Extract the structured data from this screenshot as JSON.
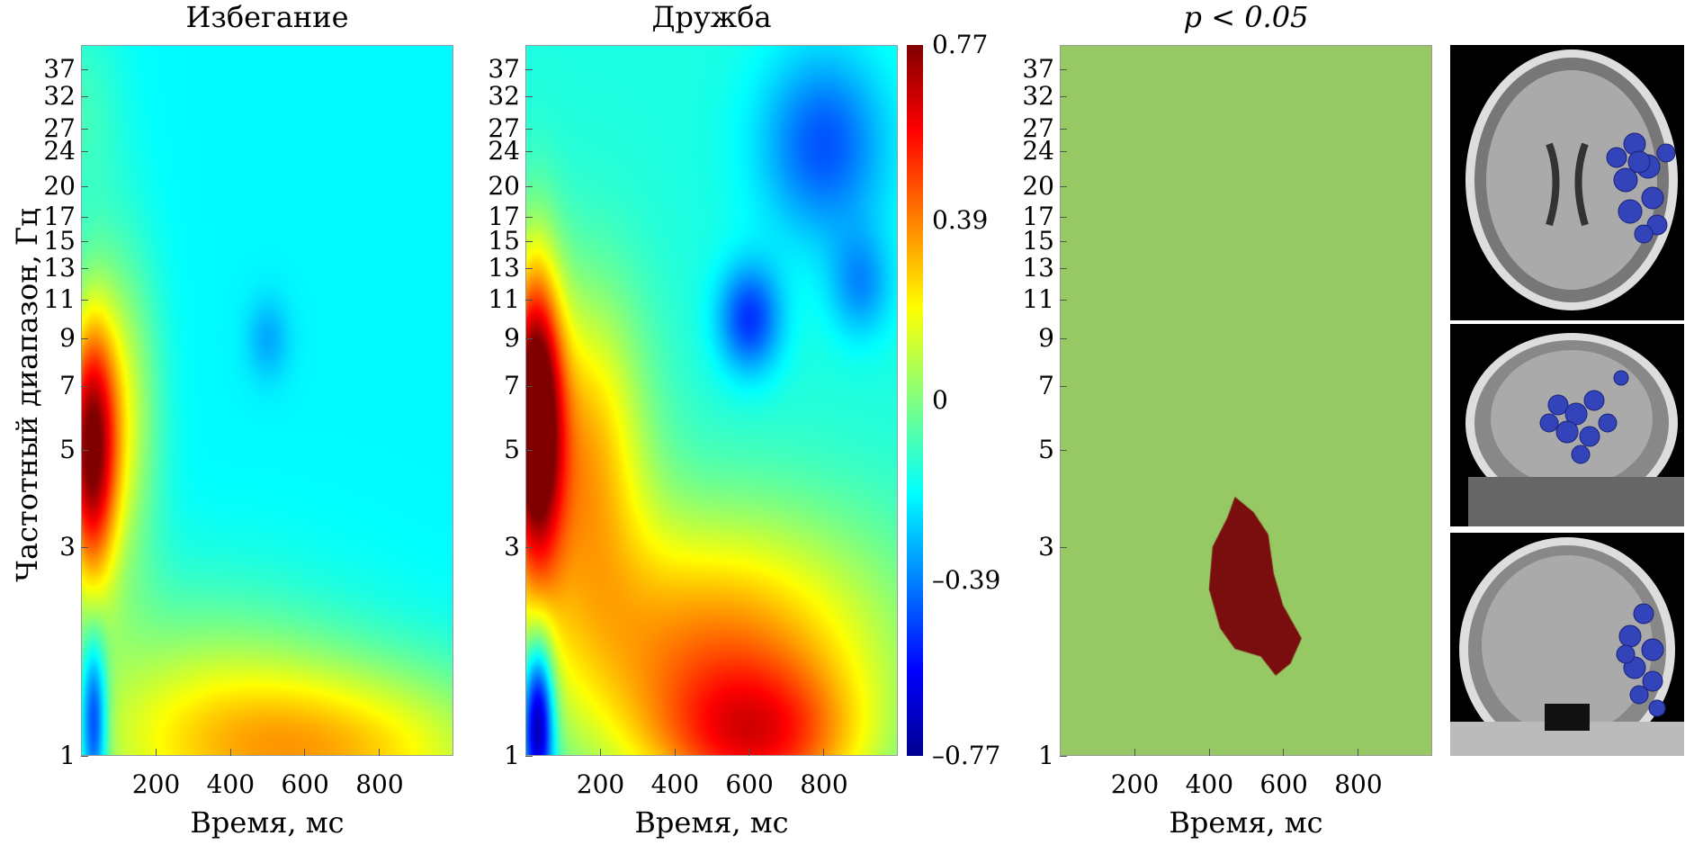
{
  "chart_data": [
    {
      "type": "heatmap",
      "title": "Избегание",
      "xlabel": "Время, мс",
      "ylabel": "Частотный диапазон, Гц",
      "xlim": [
        0,
        1000
      ],
      "ylim": [
        1,
        42
      ],
      "yscale": "log",
      "xticks": [
        200,
        400,
        600,
        800
      ],
      "yticks": [
        1,
        3,
        5,
        7,
        9,
        11,
        13,
        15,
        17,
        20,
        24,
        27,
        32,
        37
      ],
      "base": -0.2,
      "blobs": [
        {
          "t": 20,
          "f": 5,
          "st": 50,
          "sf": 0.5,
          "v": 0.9
        },
        {
          "t": 110,
          "f": 6,
          "st": 70,
          "sf": 0.6,
          "v": 0.3
        },
        {
          "t": 600,
          "f": 1,
          "st": 400,
          "sf": 0.35,
          "v": 0.5
        },
        {
          "t": 300,
          "f": 1.6,
          "st": 300,
          "sf": 0.4,
          "v": 0.15
        },
        {
          "t": 30,
          "f": 1.2,
          "st": 25,
          "sf": 0.3,
          "v": -0.5
        },
        {
          "t": 500,
          "f": 9,
          "st": 40,
          "sf": 0.15,
          "v": -0.12
        },
        {
          "t": 0,
          "f": 30,
          "st": 80,
          "sf": 0.4,
          "v": 0.1
        }
      ]
    },
    {
      "type": "heatmap",
      "title": "Дружба",
      "xlabel": "Время, мс",
      "xlim": [
        0,
        1000
      ],
      "ylim": [
        1,
        42
      ],
      "yscale": "log",
      "xticks": [
        200,
        400,
        600,
        800
      ],
      "yticks": [
        1,
        3,
        5,
        7,
        9,
        11,
        13,
        15,
        17,
        20,
        24,
        27,
        32,
        37
      ],
      "base": -0.15,
      "blobs": [
        {
          "t": 20,
          "f": 6,
          "st": 50,
          "sf": 0.55,
          "v": 1.0
        },
        {
          "t": 150,
          "f": 5,
          "st": 120,
          "sf": 0.6,
          "v": 0.45
        },
        {
          "t": 500,
          "f": 1.8,
          "st": 350,
          "sf": 0.5,
          "v": 0.5
        },
        {
          "t": 620,
          "f": 1.05,
          "st": 200,
          "sf": 0.3,
          "v": 0.5
        },
        {
          "t": 30,
          "f": 1.2,
          "st": 30,
          "sf": 0.3,
          "v": -0.7
        },
        {
          "t": 600,
          "f": 10,
          "st": 60,
          "sf": 0.2,
          "v": -0.35
        },
        {
          "t": 800,
          "f": 25,
          "st": 120,
          "sf": 0.35,
          "v": -0.3
        },
        {
          "t": 900,
          "f": 12,
          "st": 60,
          "sf": 0.2,
          "v": -0.2
        }
      ]
    },
    {
      "type": "heatmap",
      "title": "p < 0.05",
      "xlabel": "Время, мс",
      "xlim": [
        0,
        1000
      ],
      "ylim": [
        1,
        42
      ],
      "yscale": "log",
      "xticks": [
        200,
        400,
        600,
        800
      ],
      "yticks": [
        1,
        3,
        5,
        7,
        9,
        11,
        13,
        15,
        17,
        20,
        24,
        27,
        32,
        37
      ],
      "background": "#96c864",
      "cluster_color": "#7a0e0e",
      "cluster": [
        [
          470,
          3.9
        ],
        [
          520,
          3.6
        ],
        [
          560,
          3.2
        ],
        [
          575,
          2.6
        ],
        [
          600,
          2.2
        ],
        [
          650,
          1.85
        ],
        [
          620,
          1.62
        ],
        [
          580,
          1.52
        ],
        [
          540,
          1.68
        ],
        [
          470,
          1.75
        ],
        [
          430,
          1.95
        ],
        [
          400,
          2.4
        ],
        [
          410,
          3.0
        ],
        [
          450,
          3.5
        ]
      ]
    }
  ],
  "colorbar": {
    "min": -0.77,
    "max": 0.77,
    "labels": [
      "0.77",
      "0.39",
      "0",
      "–0.39",
      "–0.77"
    ],
    "values": [
      0.77,
      0.39,
      0,
      -0.39,
      -0.77
    ]
  }
}
